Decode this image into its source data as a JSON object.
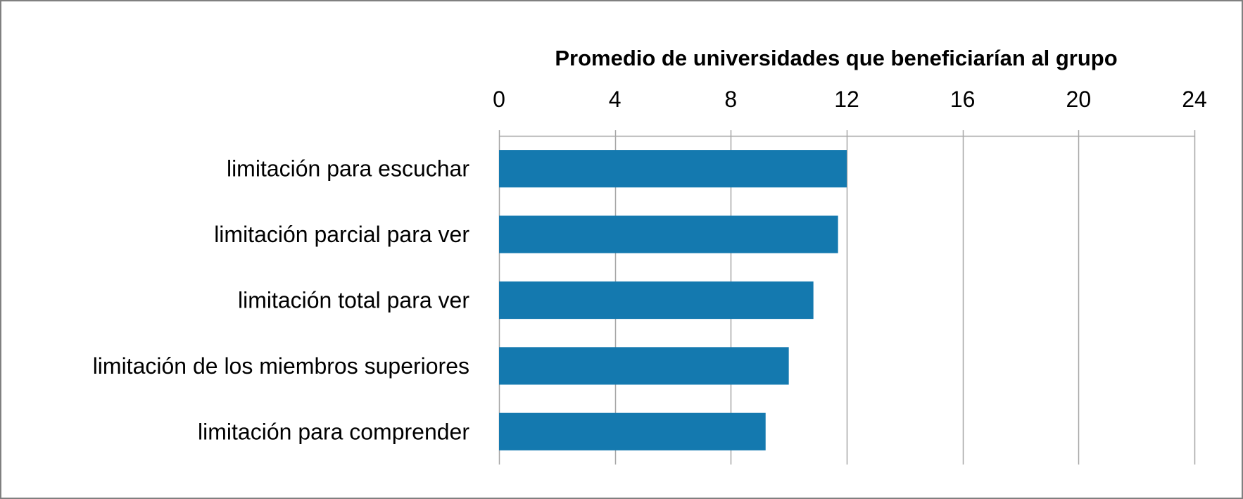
{
  "chart_data": {
    "type": "bar",
    "orientation": "horizontal",
    "xlabel": "Promedio de universidades que beneficiarían al grupo",
    "xlim": [
      0,
      24
    ],
    "xticks": [
      0,
      4,
      8,
      12,
      16,
      20,
      24
    ],
    "x_axis_position": "top",
    "grid": true,
    "categories": [
      "limitación para escuchar",
      "limitación parcial para ver",
      "limitación total para ver",
      "limitación de los miembros superiores",
      "limitación para comprender"
    ],
    "values": [
      12.0,
      11.7,
      10.85,
      10.0,
      9.2
    ],
    "bar_color": "#1479AF",
    "grid_color": "#A6A6A6",
    "border_color": "#808080"
  }
}
